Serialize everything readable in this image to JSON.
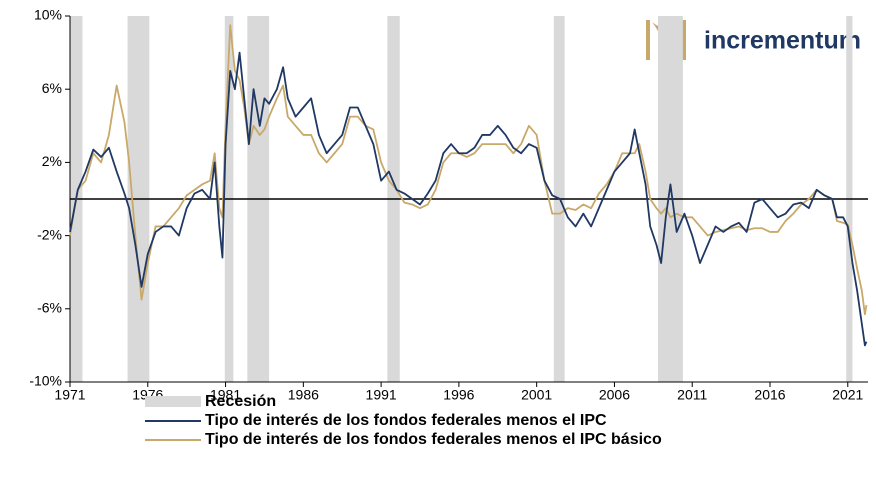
{
  "logo": "incrementum",
  "chart_data": {
    "type": "line",
    "x": [
      1971,
      1971.5,
      1972,
      1972.5,
      1973,
      1973.5,
      1974,
      1974.5,
      1974.8,
      1975.2,
      1975.6,
      1976,
      1976.5,
      1977,
      1977.5,
      1978,
      1978.5,
      1979,
      1979.5,
      1980,
      1980.3,
      1980.6,
      1980.8,
      1981,
      1981.3,
      1981.6,
      1981.9,
      1982.2,
      1982.5,
      1982.8,
      1983.2,
      1983.5,
      1983.8,
      1984.3,
      1984.7,
      1985,
      1985.5,
      1986,
      1986.5,
      1987,
      1987.5,
      1988,
      1988.5,
      1989,
      1989.5,
      1990,
      1990.5,
      1991,
      1991.5,
      1992,
      1992.5,
      1993,
      1993.5,
      1994,
      1994.5,
      1995,
      1995.5,
      1996,
      1996.5,
      1997,
      1997.5,
      1998,
      1998.5,
      1999,
      1999.5,
      2000,
      2000.5,
      2001,
      2001.5,
      2002,
      2002.5,
      2003,
      2003.5,
      2004,
      2004.5,
      2005,
      2005.5,
      2006,
      2006.5,
      2007,
      2007.3,
      2007.6,
      2008,
      2008.3,
      2008.7,
      2009,
      2009.3,
      2009.6,
      2010,
      2010.5,
      2011,
      2011.5,
      2012,
      2012.5,
      2013,
      2013.5,
      2014,
      2014.5,
      2015,
      2015.5,
      2016,
      2016.5,
      2017,
      2017.5,
      2018,
      2018.5,
      2019,
      2019.5,
      2020,
      2020.3,
      2020.7,
      2021,
      2021.3,
      2021.6,
      2021.9,
      2022.1,
      2022.2
    ],
    "series": [
      {
        "name": "Tipo de interés de los fondos federales menos el IPC",
        "color": "#1f3864",
        "values": [
          -1.8,
          0.5,
          1.5,
          2.7,
          2.3,
          2.8,
          1.5,
          0.3,
          -0.5,
          -2.5,
          -4.8,
          -3.0,
          -1.8,
          -1.5,
          -1.5,
          -2.0,
          -0.5,
          0.3,
          0.5,
          0.0,
          2.0,
          -1.5,
          -3.2,
          3.0,
          7.0,
          6.0,
          8.0,
          5.5,
          3.0,
          6.0,
          4.0,
          5.5,
          5.2,
          6.0,
          7.2,
          5.5,
          4.5,
          5.0,
          5.5,
          3.5,
          2.5,
          3.0,
          3.5,
          5.0,
          5.0,
          4.0,
          3.0,
          1.0,
          1.5,
          0.5,
          0.3,
          0.0,
          -0.3,
          0.3,
          1.0,
          2.5,
          3.0,
          2.5,
          2.5,
          2.8,
          3.5,
          3.5,
          4.0,
          3.5,
          2.8,
          2.5,
          3.0,
          2.8,
          1.0,
          0.2,
          0.0,
          -1.0,
          -1.5,
          -0.8,
          -1.5,
          -0.5,
          0.5,
          1.5,
          2.0,
          2.5,
          3.8,
          2.5,
          0.8,
          -1.5,
          -2.5,
          -3.5,
          -1.0,
          0.8,
          -1.8,
          -0.8,
          -2.0,
          -3.5,
          -2.5,
          -1.5,
          -1.8,
          -1.5,
          -1.3,
          -1.8,
          -0.2,
          0.0,
          -0.5,
          -1.0,
          -0.8,
          -0.3,
          -0.2,
          -0.5,
          0.5,
          0.2,
          0.0,
          -1.0,
          -1.0,
          -1.5,
          -3.5,
          -5.0,
          -6.8,
          -8.0,
          -7.8
        ]
      },
      {
        "name": "Tipo de interés de los fondos federales menos el IPC básico",
        "color": "#c9a96a",
        "values": [
          -2.0,
          0.5,
          1.0,
          2.5,
          2.0,
          3.5,
          6.2,
          4.2,
          2.0,
          -2.0,
          -5.5,
          -3.5,
          -1.5,
          -1.5,
          -1.0,
          -0.5,
          0.2,
          0.5,
          0.8,
          1.0,
          2.5,
          -0.5,
          -1.0,
          4.0,
          9.5,
          7.0,
          6.5,
          5.0,
          3.0,
          4.0,
          3.5,
          3.8,
          4.5,
          5.5,
          6.2,
          4.5,
          4.0,
          3.5,
          3.5,
          2.5,
          2.0,
          2.5,
          3.0,
          4.5,
          4.5,
          4.0,
          3.8,
          2.0,
          1.0,
          0.5,
          -0.2,
          -0.3,
          -0.5,
          -0.3,
          0.5,
          2.0,
          2.5,
          2.5,
          2.3,
          2.5,
          3.0,
          3.0,
          3.0,
          3.0,
          2.5,
          3.0,
          4.0,
          3.5,
          1.0,
          -0.8,
          -0.8,
          -0.5,
          -0.6,
          -0.3,
          -0.5,
          0.3,
          0.8,
          1.5,
          2.5,
          2.5,
          2.5,
          3.0,
          1.5,
          0.0,
          -0.5,
          -0.8,
          -0.5,
          -1.0,
          -0.8,
          -1.0,
          -1.0,
          -1.5,
          -2.0,
          -1.8,
          -1.7,
          -1.6,
          -1.5,
          -1.7,
          -1.6,
          -1.6,
          -1.8,
          -1.8,
          -1.2,
          -0.8,
          -0.3,
          0.0,
          0.5,
          0.2,
          0.0,
          -1.2,
          -1.3,
          -1.4,
          -2.5,
          -3.8,
          -5.0,
          -6.3,
          -5.8
        ]
      }
    ],
    "recession_name": "Recesión",
    "recession_color": "#d9d9d9",
    "recessions": [
      [
        1971,
        1971.8
      ],
      [
        1974.7,
        1976.1
      ],
      [
        1980.95,
        1981.5
      ],
      [
        1982.4,
        1983.8
      ],
      [
        1991.4,
        1992.2
      ],
      [
        2002.1,
        2002.8
      ],
      [
        2008.8,
        2010.4
      ],
      [
        2020.9,
        2021.3
      ]
    ],
    "xlim": [
      1971,
      2022.3
    ],
    "xticks": [
      1971,
      1976,
      1981,
      1986,
      1991,
      1996,
      2001,
      2006,
      2011,
      2016,
      2021
    ],
    "ylim": [
      -10,
      10
    ],
    "yticks": [
      {
        "value": -10,
        "label": "-10%"
      },
      {
        "value": -6,
        "label": "-6%"
      },
      {
        "value": -2,
        "label": "-2%"
      },
      {
        "value": 2,
        "label": "2%"
      },
      {
        "value": 6,
        "label": "6%"
      },
      {
        "value": 10,
        "label": "10%"
      }
    ],
    "zero_line": 0
  }
}
